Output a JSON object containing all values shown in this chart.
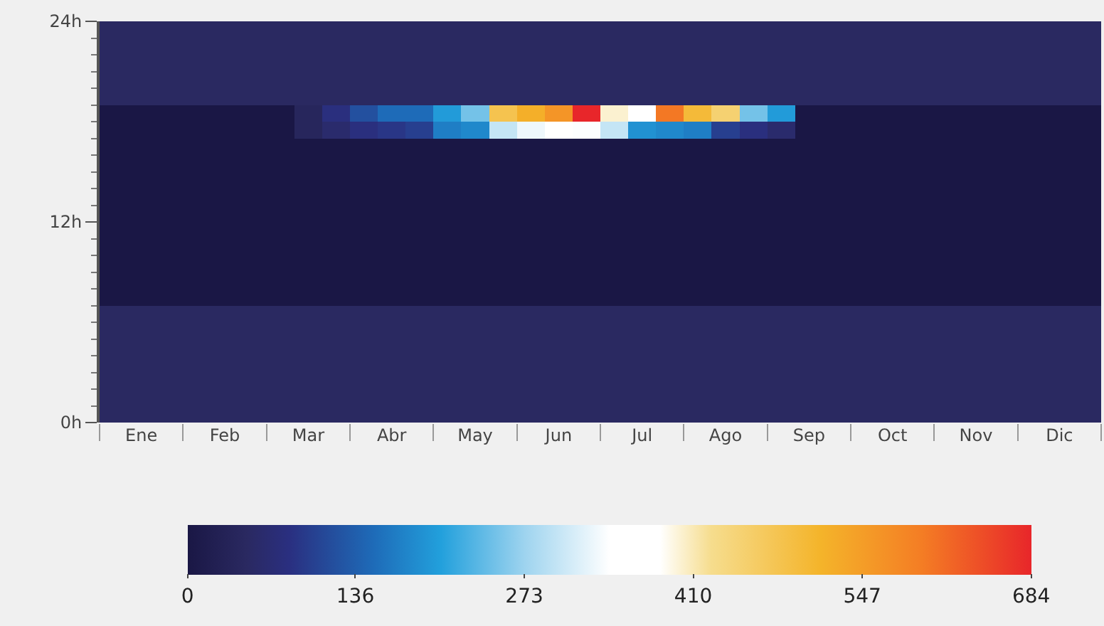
{
  "chart_data": {
    "type": "heatmap",
    "categories": [
      null,
      "Ene",
      null,
      null,
      "Feb",
      null,
      null,
      "Mar",
      null,
      null,
      "Abr",
      null,
      null,
      "May",
      null,
      null,
      "Jun",
      null,
      null,
      "Jul",
      null,
      null,
      "Ago",
      null,
      null,
      "Sep",
      null,
      null,
      "Oct",
      null,
      null,
      "Nov",
      null,
      null,
      "Dic",
      null
    ],
    "ylim": [
      0,
      24
    ],
    "yticks": [
      {
        "value": 0,
        "label": "0h"
      },
      {
        "value": 12,
        "label": "12h"
      },
      {
        "value": 24,
        "label": "24h"
      }
    ],
    "clim": [
      0,
      684
    ],
    "cticks": [
      0,
      136,
      273,
      410,
      547,
      684
    ],
    "cells": [
      [
        48,
        48,
        48,
        48,
        48,
        48,
        48,
        48,
        48,
        48,
        48,
        48,
        48,
        48,
        48,
        48,
        48,
        48,
        48,
        48,
        48,
        48,
        48,
        48,
        48,
        48,
        48,
        48,
        48,
        48,
        48,
        48,
        48,
        48,
        48,
        48
      ],
      [
        48,
        48,
        48,
        48,
        48,
        48,
        48,
        48,
        48,
        48,
        48,
        48,
        48,
        48,
        48,
        48,
        48,
        48,
        48,
        48,
        48,
        48,
        48,
        48,
        48,
        48,
        48,
        48,
        48,
        48,
        48,
        48,
        48,
        48,
        48,
        48
      ],
      [
        48,
        48,
        48,
        48,
        48,
        48,
        48,
        48,
        48,
        48,
        48,
        48,
        48,
        48,
        48,
        48,
        48,
        48,
        48,
        48,
        48,
        48,
        48,
        48,
        48,
        48,
        48,
        48,
        48,
        48,
        48,
        48,
        48,
        48,
        48,
        48
      ],
      [
        48,
        48,
        48,
        48,
        48,
        48,
        48,
        48,
        48,
        48,
        48,
        48,
        48,
        48,
        48,
        48,
        48,
        48,
        48,
        48,
        48,
        48,
        48,
        48,
        48,
        48,
        48,
        48,
        48,
        48,
        48,
        48,
        48,
        48,
        48,
        48
      ],
      [
        48,
        48,
        48,
        48,
        48,
        48,
        48,
        48,
        48,
        48,
        48,
        48,
        48,
        48,
        48,
        48,
        48,
        48,
        48,
        48,
        48,
        48,
        48,
        48,
        48,
        48,
        48,
        48,
        48,
        48,
        48,
        48,
        48,
        48,
        48,
        48
      ],
      [
        0,
        0,
        0,
        0,
        0,
        0,
        0,
        40,
        80,
        120,
        150,
        150,
        200,
        250,
        480,
        520,
        560,
        684,
        400,
        350,
        600,
        500,
        450,
        250,
        200,
        0,
        0,
        0,
        0,
        0,
        0,
        0,
        0,
        0,
        0,
        0
      ],
      [
        0,
        0,
        0,
        0,
        0,
        0,
        0,
        40,
        60,
        80,
        90,
        100,
        170,
        180,
        300,
        330,
        360,
        340,
        300,
        190,
        180,
        170,
        100,
        80,
        60,
        0,
        0,
        0,
        0,
        0,
        0,
        0,
        0,
        0,
        0,
        0
      ],
      [
        0,
        0,
        0,
        0,
        0,
        0,
        0,
        0,
        0,
        0,
        0,
        0,
        0,
        0,
        0,
        0,
        0,
        0,
        0,
        0,
        0,
        0,
        0,
        0,
        0,
        0,
        0,
        0,
        0,
        0,
        0,
        0,
        0,
        0,
        0,
        0
      ],
      [
        0,
        0,
        0,
        0,
        0,
        0,
        0,
        0,
        0,
        0,
        0,
        0,
        0,
        0,
        0,
        0,
        0,
        0,
        0,
        0,
        0,
        0,
        0,
        0,
        0,
        0,
        0,
        0,
        0,
        0,
        0,
        0,
        0,
        0,
        0,
        0
      ],
      [
        0,
        0,
        0,
        0,
        0,
        0,
        0,
        0,
        0,
        0,
        0,
        0,
        0,
        0,
        0,
        0,
        0,
        0,
        0,
        0,
        0,
        0,
        0,
        0,
        0,
        0,
        0,
        0,
        0,
        0,
        0,
        0,
        0,
        0,
        0,
        0
      ],
      [
        0,
        0,
        0,
        0,
        0,
        0,
        0,
        0,
        0,
        0,
        0,
        0,
        0,
        0,
        0,
        0,
        0,
        0,
        0,
        0,
        0,
        0,
        0,
        0,
        0,
        0,
        0,
        0,
        0,
        0,
        0,
        0,
        0,
        0,
        0,
        0
      ],
      [
        0,
        0,
        0,
        0,
        0,
        0,
        0,
        0,
        0,
        0,
        0,
        0,
        0,
        0,
        0,
        0,
        0,
        0,
        0,
        0,
        0,
        0,
        0,
        0,
        0,
        0,
        0,
        0,
        0,
        0,
        0,
        0,
        0,
        0,
        0,
        0
      ],
      [
        0,
        0,
        0,
        0,
        0,
        0,
        0,
        0,
        0,
        0,
        0,
        0,
        0,
        0,
        0,
        0,
        0,
        0,
        0,
        0,
        0,
        0,
        0,
        0,
        0,
        0,
        0,
        0,
        0,
        0,
        0,
        0,
        0,
        0,
        0,
        0
      ],
      [
        0,
        0,
        0,
        0,
        0,
        0,
        0,
        0,
        0,
        0,
        0,
        0,
        0,
        0,
        0,
        0,
        0,
        0,
        0,
        0,
        0,
        0,
        0,
        0,
        0,
        0,
        0,
        0,
        0,
        0,
        0,
        0,
        0,
        0,
        0,
        0
      ],
      [
        0,
        0,
        0,
        0,
        0,
        0,
        0,
        0,
        0,
        0,
        0,
        0,
        0,
        0,
        0,
        0,
        0,
        0,
        0,
        0,
        0,
        0,
        0,
        0,
        0,
        0,
        0,
        0,
        0,
        0,
        0,
        0,
        0,
        0,
        0,
        0
      ],
      [
        0,
        0,
        0,
        0,
        0,
        0,
        0,
        0,
        0,
        0,
        0,
        0,
        0,
        0,
        0,
        0,
        0,
        0,
        0,
        0,
        0,
        0,
        0,
        0,
        0,
        0,
        0,
        0,
        0,
        0,
        0,
        0,
        0,
        0,
        0,
        0
      ],
      [
        0,
        0,
        0,
        0,
        0,
        0,
        0,
        0,
        0,
        0,
        0,
        0,
        0,
        0,
        0,
        0,
        0,
        0,
        0,
        0,
        0,
        0,
        0,
        0,
        0,
        0,
        0,
        0,
        0,
        0,
        0,
        0,
        0,
        0,
        0,
        0
      ],
      [
        48,
        48,
        48,
        48,
        48,
        48,
        48,
        48,
        48,
        48,
        48,
        48,
        48,
        48,
        48,
        48,
        48,
        48,
        48,
        48,
        48,
        48,
        48,
        48,
        48,
        48,
        48,
        48,
        48,
        48,
        48,
        48,
        48,
        48,
        48,
        48
      ],
      [
        48,
        48,
        48,
        48,
        48,
        48,
        48,
        48,
        48,
        48,
        48,
        48,
        48,
        48,
        48,
        48,
        48,
        48,
        48,
        48,
        48,
        48,
        48,
        48,
        48,
        48,
        48,
        48,
        48,
        48,
        48,
        48,
        48,
        48,
        48,
        48
      ],
      [
        48,
        48,
        48,
        48,
        48,
        48,
        48,
        48,
        48,
        48,
        48,
        48,
        48,
        48,
        48,
        48,
        48,
        48,
        48,
        48,
        48,
        48,
        48,
        48,
        48,
        48,
        48,
        48,
        48,
        48,
        48,
        48,
        48,
        48,
        48,
        48
      ],
      [
        48,
        48,
        48,
        48,
        48,
        48,
        48,
        48,
        48,
        48,
        48,
        48,
        48,
        48,
        48,
        48,
        48,
        48,
        48,
        48,
        48,
        48,
        48,
        48,
        48,
        48,
        48,
        48,
        48,
        48,
        48,
        48,
        48,
        48,
        48,
        48
      ],
      [
        48,
        48,
        48,
        48,
        48,
        48,
        48,
        48,
        48,
        48,
        48,
        48,
        48,
        48,
        48,
        48,
        48,
        48,
        48,
        48,
        48,
        48,
        48,
        48,
        48,
        48,
        48,
        48,
        48,
        48,
        48,
        48,
        48,
        48,
        48,
        48
      ],
      [
        48,
        48,
        48,
        48,
        48,
        48,
        48,
        48,
        48,
        48,
        48,
        48,
        48,
        48,
        48,
        48,
        48,
        48,
        48,
        48,
        48,
        48,
        48,
        48,
        48,
        48,
        48,
        48,
        48,
        48,
        48,
        48,
        48,
        48,
        48,
        48
      ],
      [
        48,
        48,
        48,
        48,
        48,
        48,
        48,
        48,
        48,
        48,
        48,
        48,
        48,
        48,
        48,
        48,
        48,
        48,
        48,
        48,
        48,
        48,
        48,
        48,
        48,
        48,
        48,
        48,
        48,
        48,
        48,
        48,
        48,
        48,
        48,
        48
      ]
    ]
  }
}
